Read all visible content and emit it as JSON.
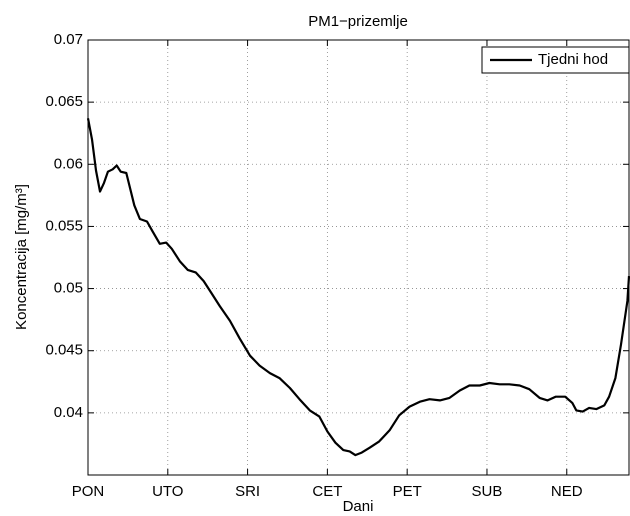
{
  "chart_data": {
    "type": "line",
    "title": "PM1−prizemlje",
    "xlabel": "Dani",
    "ylabel": "Koncentracija [mg/m³]",
    "x": [
      1.0,
      1.05,
      1.1,
      1.15,
      1.2,
      1.25,
      1.31,
      1.36,
      1.41,
      1.48,
      1.53,
      1.58,
      1.65,
      1.74,
      1.81,
      1.9,
      1.98,
      2.05,
      2.15,
      2.25,
      2.35,
      2.45,
      2.55,
      2.65,
      2.78,
      2.9,
      3.03,
      3.15,
      3.28,
      3.4,
      3.53,
      3.65,
      3.78,
      3.9,
      4.0,
      4.1,
      4.2,
      4.28,
      4.35,
      4.43,
      4.53,
      4.65,
      4.78,
      4.9,
      5.03,
      5.16,
      5.28,
      5.41,
      5.53,
      5.66,
      5.78,
      5.91,
      6.03,
      6.16,
      6.28,
      6.41,
      6.53,
      6.66,
      6.76,
      6.86,
      6.98,
      7.07,
      7.12,
      7.2,
      7.28,
      7.37,
      7.47,
      7.53,
      7.61,
      7.68,
      7.76,
      7.78
    ],
    "series": [
      {
        "name": "Tjedni hod",
        "color": "#000000",
        "values": [
          0.0637,
          0.062,
          0.0595,
          0.0578,
          0.0585,
          0.0594,
          0.0596,
          0.0599,
          0.0594,
          0.0593,
          0.058,
          0.0567,
          0.0556,
          0.0554,
          0.0546,
          0.0536,
          0.0537,
          0.0532,
          0.0522,
          0.0515,
          0.0513,
          0.0506,
          0.0496,
          0.0486,
          0.0474,
          0.046,
          0.0446,
          0.0438,
          0.0432,
          0.0428,
          0.042,
          0.0411,
          0.0402,
          0.0397,
          0.0385,
          0.0376,
          0.037,
          0.0369,
          0.0366,
          0.0368,
          0.0372,
          0.0377,
          0.0386,
          0.0398,
          0.0405,
          0.0409,
          0.0411,
          0.041,
          0.0412,
          0.0418,
          0.0422,
          0.0422,
          0.0424,
          0.0423,
          0.0423,
          0.0422,
          0.0419,
          0.0412,
          0.041,
          0.0413,
          0.0413,
          0.0408,
          0.0402,
          0.0401,
          0.0404,
          0.0403,
          0.0406,
          0.0413,
          0.0428,
          0.0455,
          0.049,
          0.051
        ]
      }
    ],
    "xlim": [
      1,
      7.78
    ],
    "xticks": [
      {
        "value": 1,
        "label": "PON"
      },
      {
        "value": 2,
        "label": "UTO"
      },
      {
        "value": 3,
        "label": "SRI"
      },
      {
        "value": 4,
        "label": "CET"
      },
      {
        "value": 5,
        "label": "PET"
      },
      {
        "value": 6,
        "label": "SUB"
      },
      {
        "value": 7,
        "label": "NED"
      }
    ],
    "ylim": [
      0.035,
      0.07
    ],
    "yticks": [
      0.04,
      0.045,
      0.05,
      0.055,
      0.06,
      0.065,
      0.07
    ],
    "grid": true,
    "legend": "upper right"
  }
}
